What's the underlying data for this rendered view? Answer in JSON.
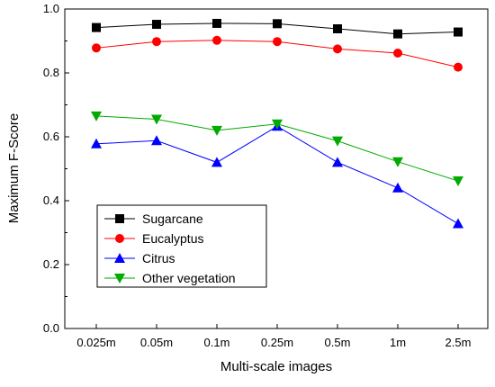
{
  "chart_data": {
    "type": "line",
    "title": "",
    "xlabel": "Multi-scale images",
    "ylabel": "Maximum F-Score",
    "categories": [
      "0.025m",
      "0.05m",
      "0.1m",
      "0.25m",
      "0.5m",
      "1m",
      "2.5m"
    ],
    "ylim": [
      0.0,
      1.0
    ],
    "yticks": [
      "0.0",
      "0.2",
      "0.4",
      "0.6",
      "0.8",
      "1.0"
    ],
    "grid": false,
    "legend_position": "bottom-left",
    "series": [
      {
        "name": "Sugarcane",
        "color": "#000000",
        "marker": "square",
        "values": [
          0.942,
          0.952,
          0.955,
          0.954,
          0.938,
          0.922,
          0.928
        ]
      },
      {
        "name": "Eucalyptus",
        "color": "#ff0000",
        "marker": "circle",
        "values": [
          0.878,
          0.898,
          0.902,
          0.898,
          0.875,
          0.862,
          0.818
        ]
      },
      {
        "name": "Citrus",
        "color": "#0000ff",
        "marker": "triangle-up",
        "values": [
          0.578,
          0.588,
          0.52,
          0.633,
          0.52,
          0.44,
          0.328
        ]
      },
      {
        "name": "Other vegetation",
        "color": "#00aa00",
        "marker": "triangle-down",
        "values": [
          0.665,
          0.655,
          0.62,
          0.64,
          0.587,
          0.522,
          0.462
        ]
      }
    ]
  }
}
